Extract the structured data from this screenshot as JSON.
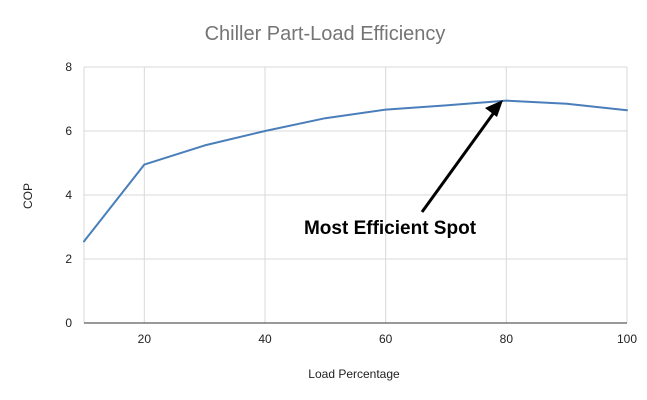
{
  "chart_data": {
    "type": "line",
    "title": "Chiller Part-Load Efficiency",
    "xlabel": "Load Percentage",
    "ylabel": "COP",
    "xlim": [
      10,
      100
    ],
    "ylim": [
      0,
      8
    ],
    "grid": true,
    "x_ticks": [
      20,
      40,
      60,
      80,
      100
    ],
    "y_ticks": [
      0,
      2,
      4,
      6,
      8
    ],
    "x_tick_labels": [
      "20",
      "40",
      "60",
      "80",
      "100"
    ],
    "y_tick_labels": [
      "0",
      "2",
      "4",
      "6",
      "8"
    ],
    "series": [
      {
        "name": "COP",
        "color": "#4a7ebb",
        "x": [
          10,
          20,
          30,
          40,
          50,
          60,
          70,
          80,
          90,
          100
        ],
        "y": [
          2.55,
          4.95,
          5.55,
          6.0,
          6.4,
          6.67,
          6.8,
          6.95,
          6.85,
          6.65
        ]
      }
    ],
    "annotations": [
      {
        "text": "Most Efficient Spot",
        "x": 80,
        "y": 6.95
      }
    ]
  }
}
